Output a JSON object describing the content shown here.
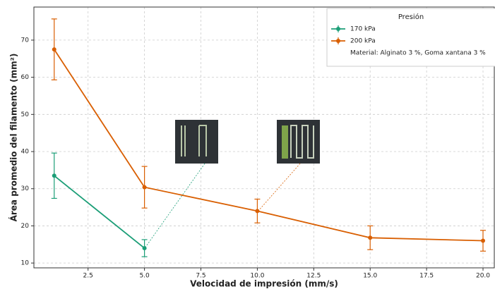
{
  "chart_data": {
    "type": "line",
    "xlabel": "Velocidad de impresión (mm/s)",
    "ylabel": "Área promedio del filamento (mm²)",
    "legend_title": "Presión",
    "legend_note": "Material: Alginato 3 %, Goma xantana 3 %",
    "legend_position": "upper right",
    "grid": true,
    "xlim": [
      0.1,
      20.5
    ],
    "ylim": [
      8.7,
      78.9
    ],
    "xticks": [
      2.5,
      {
        "value": 5,
        "label": "5.0"
      },
      7.5,
      {
        "value": 10,
        "label": "10.0"
      },
      12.5,
      {
        "value": 15,
        "label": "15.0"
      },
      17.5,
      {
        "value": 20,
        "label": "20.0"
      }
    ],
    "yticks": [
      10,
      20,
      30,
      40,
      50,
      60,
      70
    ],
    "series": [
      {
        "name": "170 kPa",
        "color": "#1b9e77",
        "x": [
          1,
          5
        ],
        "values": [
          33.5,
          14
        ],
        "errors": [
          6.1,
          2.3
        ]
      },
      {
        "name": "200 kPa",
        "color": "#d95f02",
        "x": [
          1,
          5,
          10,
          15,
          20
        ],
        "values": [
          67.5,
          30.4,
          24,
          16.8,
          16
        ],
        "errors": [
          8.2,
          5.6,
          3.2,
          3.2,
          2.8
        ]
      }
    ]
  }
}
